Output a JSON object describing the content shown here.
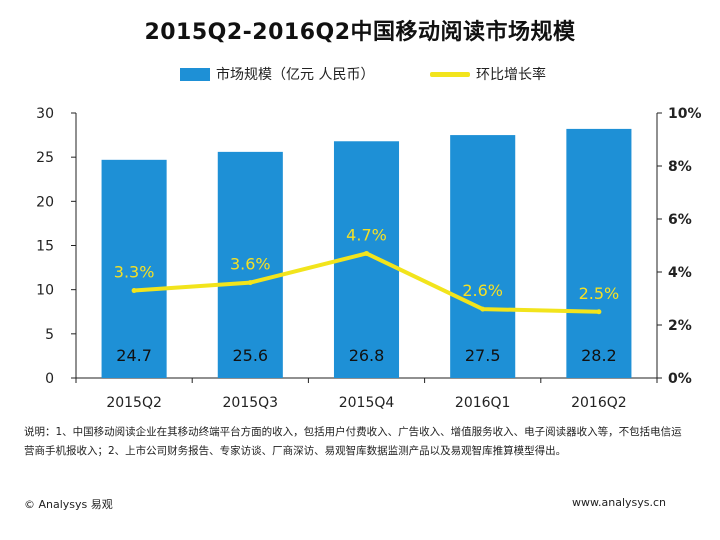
{
  "chart_data": {
    "type": "bar",
    "title": "2015Q2-2016Q2中国移动阅读市场规模",
    "categories": [
      "2015Q2",
      "2015Q3",
      "2015Q4",
      "2016Q1",
      "2016Q2"
    ],
    "series": [
      {
        "name": "市场规模（亿元 人民币）",
        "type": "bar",
        "axis": "left",
        "color": "#1e90d6",
        "values": [
          24.7,
          25.6,
          26.8,
          27.5,
          28.2
        ],
        "labels": [
          "24.7",
          "25.6",
          "26.8",
          "27.5",
          "28.2"
        ]
      },
      {
        "name": "环比增长率",
        "type": "line",
        "axis": "right",
        "color": "#f2e41c",
        "values": [
          3.3,
          3.6,
          4.7,
          2.6,
          2.5
        ],
        "labels": [
          "3.3%",
          "3.6%",
          "4.7%",
          "2.6%",
          "2.5%"
        ]
      }
    ],
    "ylim": [
      0,
      30
    ],
    "yticks": [
      "0",
      "5",
      "10",
      "15",
      "20",
      "25",
      "30"
    ],
    "y2lim": [
      0,
      10
    ],
    "y2ticks": [
      "0%",
      "2%",
      "4%",
      "6%",
      "8%",
      "10%"
    ],
    "legend_position": "top",
    "grid": false
  },
  "note": "说明：1、中国移动阅读企业在其移动终端平台方面的收入，包括用户付费收入、广告收入、增值服务收入、电子阅读器收入等，不包括电信运营商手机报收入；2、上市公司财务报告、专家访谈、厂商深访、易观智库数据监测产品以及易观智库推算模型得出。",
  "footer": {
    "copyright": "© Analysys 易观",
    "website": "www.analysys.cn"
  }
}
